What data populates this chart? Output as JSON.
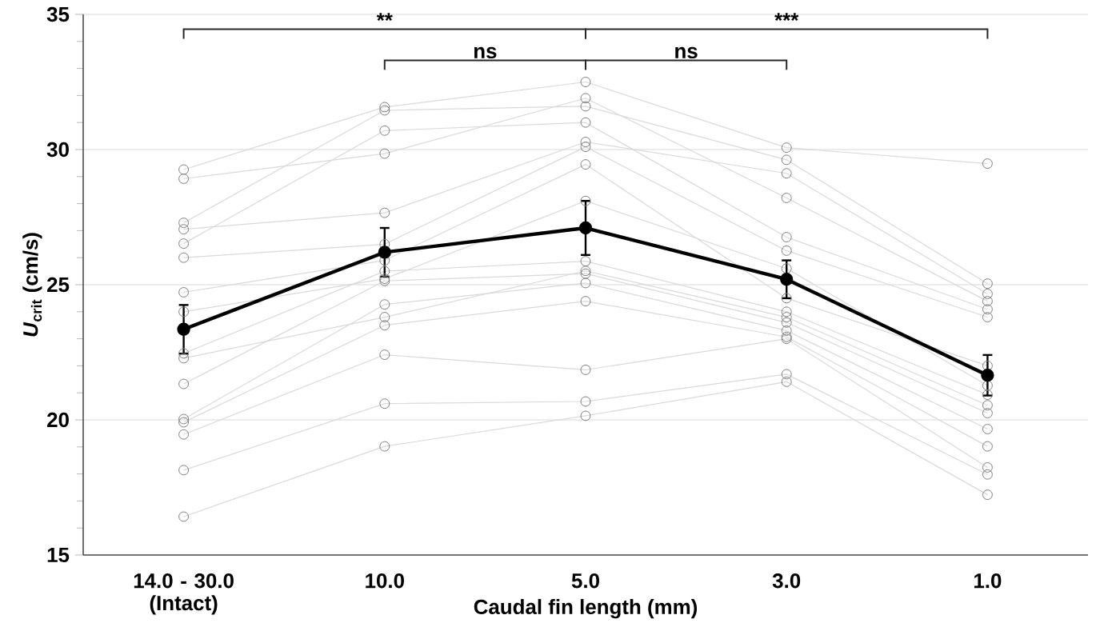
{
  "chart_data": {
    "type": "line",
    "xlabel": "Caudal fin length (mm)",
    "ylabel": "*U*$_{crit}$ (cm/s)",
    "categories": [
      "14.0 - 30.0 (Intact)",
      "10.0",
      "5.0",
      "3.0",
      "1.0"
    ],
    "ylim": [
      15,
      35
    ],
    "yticks": [
      15,
      20,
      25,
      30,
      35
    ],
    "grid": "y",
    "marker": "circle",
    "series": [
      {
        "color": "#d9d9d9",
        "values": [
          29.26,
          31.57,
          32.5,
          30.07,
          29.48
        ]
      },
      {
        "color": "#d9d9d9",
        "values": [
          28.92,
          29.85,
          31.9,
          28.21,
          24.39
        ]
      },
      {
        "color": "#d9d9d9",
        "values": [
          27.29,
          31.45,
          31.6,
          29.62,
          25.04
        ]
      },
      {
        "color": "#d9d9d9",
        "values": [
          27.05,
          27.66,
          30.28,
          29.12,
          24.66
        ]
      },
      {
        "color": "#d9d9d9",
        "values": [
          26.52,
          30.7,
          31.0,
          26.76,
          24.09
        ]
      },
      {
        "color": "#d9d9d9",
        "values": [
          26.0,
          26.5,
          30.1,
          26.26,
          23.8
        ]
      },
      {
        "color": "#d9d9d9",
        "values": [
          24.72,
          25.9,
          29.45,
          24.5,
          22.0
        ]
      },
      {
        "color": "#d9d9d9",
        "values": [
          24.0,
          25.22,
          28.1,
          25.6,
          21.27
        ]
      },
      {
        "color": "#d9d9d9",
        "values": [
          22.46,
          25.5,
          25.87,
          24.0,
          20.93
        ]
      },
      {
        "color": "#d9d9d9",
        "values": [
          22.28,
          23.8,
          25.51,
          23.8,
          20.54
        ]
      },
      {
        "color": "#d9d9d9",
        "values": [
          21.33,
          25.14,
          25.41,
          23.6,
          20.25
        ]
      },
      {
        "color": "#d9d9d9",
        "values": [
          20.03,
          24.27,
          25.06,
          23.3,
          19.66
        ]
      },
      {
        "color": "#d9d9d9",
        "values": [
          19.91,
          23.5,
          24.39,
          23.07,
          19.02
        ]
      },
      {
        "color": "#d9d9d9",
        "values": [
          19.46,
          22.41,
          21.85,
          23.0,
          18.24
        ]
      },
      {
        "color": "#d9d9d9",
        "values": [
          18.14,
          20.6,
          20.68,
          21.69,
          17.98
        ]
      },
      {
        "color": "#d9d9d9",
        "values": [
          16.42,
          19.02,
          20.15,
          21.41,
          17.23
        ]
      },
      {
        "color": "#000000",
        "values": [
          23.35,
          26.2,
          27.1,
          25.2,
          21.65
        ],
        "errors": [
          0.9,
          0.9,
          1.0,
          0.7,
          0.75
        ]
      }
    ],
    "annotations": [
      "**",
      "ns",
      "ns",
      "***"
    ]
  }
}
